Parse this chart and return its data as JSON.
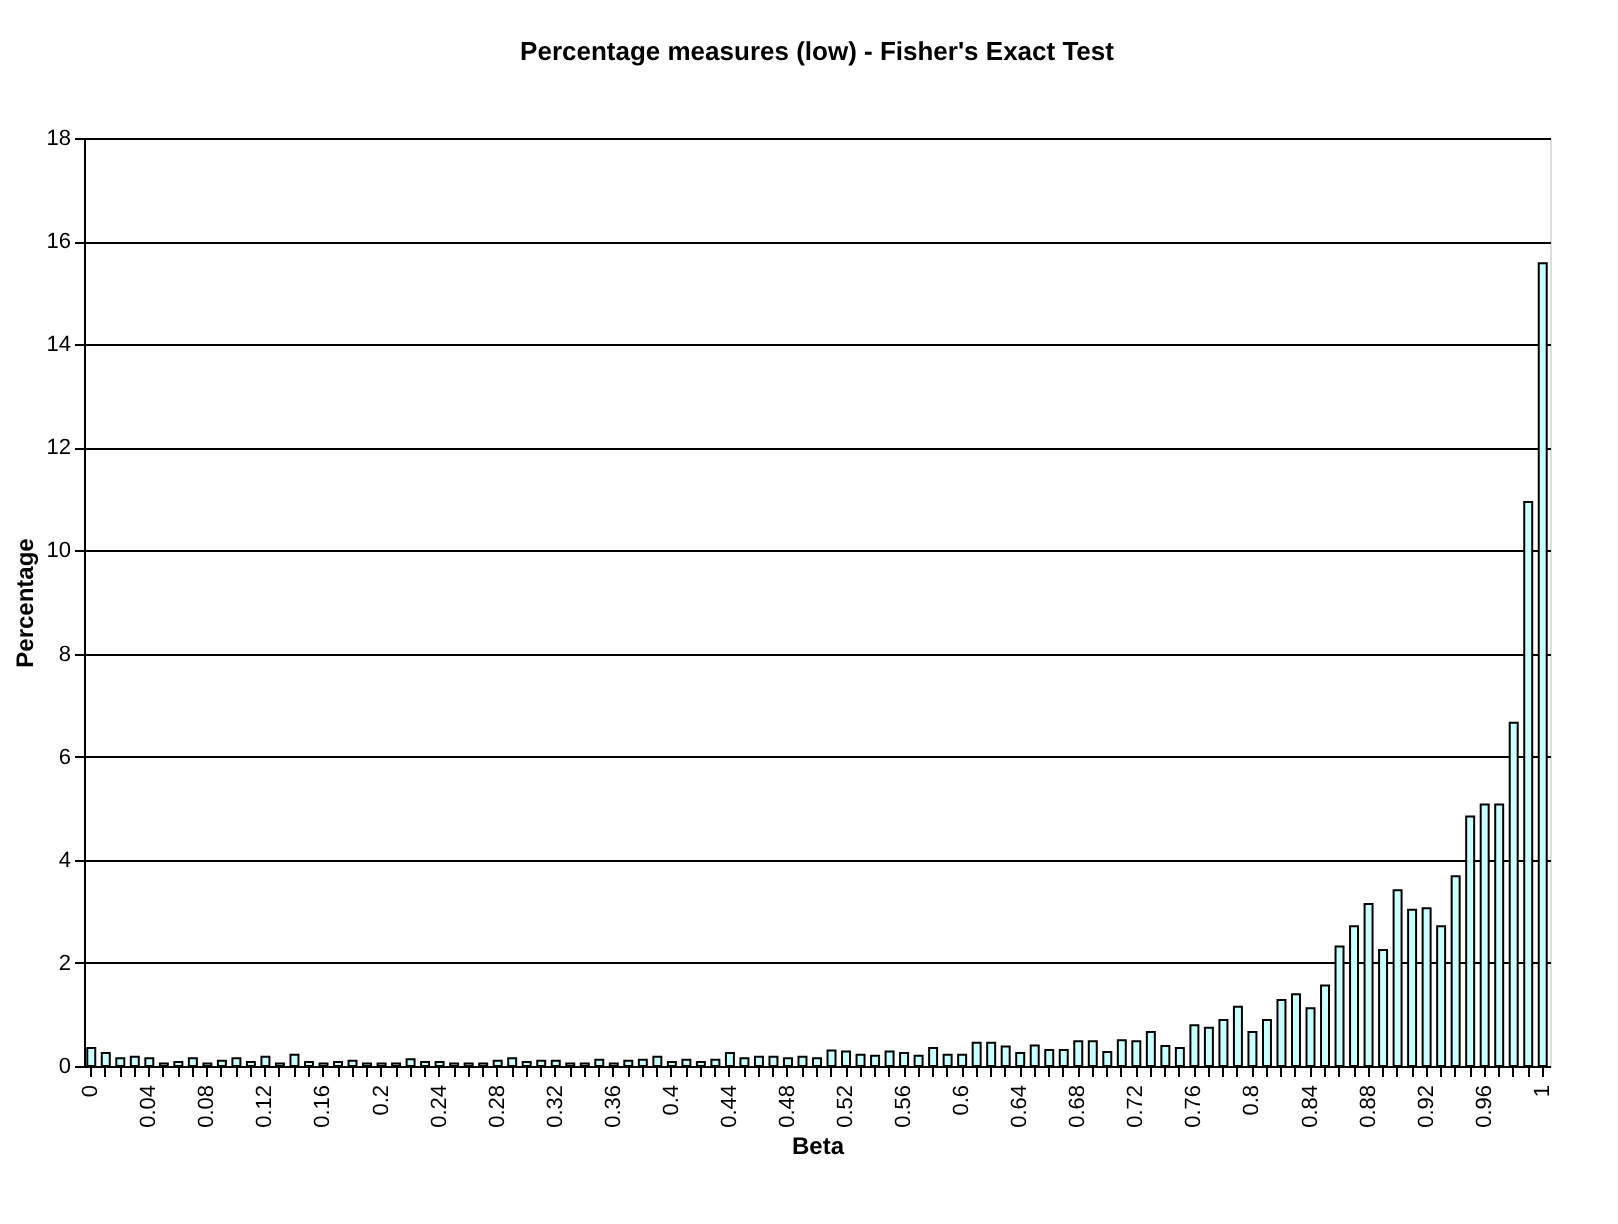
{
  "chart_data": {
    "type": "bar",
    "title": "Percentage measures (low) - Fisher's Exact Test",
    "xlabel": "Beta",
    "ylabel": "Percentage",
    "categories": [
      "0",
      null,
      null,
      null,
      "0.04",
      null,
      null,
      null,
      "0.08",
      null,
      null,
      null,
      "0.12",
      null,
      null,
      null,
      "0.16",
      null,
      null,
      null,
      "0.2",
      null,
      null,
      null,
      "0.24",
      null,
      null,
      null,
      "0.28",
      null,
      null,
      null,
      "0.32",
      null,
      null,
      null,
      "0.36",
      null,
      null,
      null,
      "0.4",
      null,
      null,
      null,
      "0.44",
      null,
      null,
      null,
      "0.48",
      null,
      null,
      null,
      "0.52",
      null,
      null,
      null,
      "0.56",
      null,
      null,
      null,
      "0.6",
      null,
      null,
      null,
      "0.64",
      null,
      null,
      null,
      "0.68",
      null,
      null,
      null,
      "0.72",
      null,
      null,
      null,
      "0.76",
      null,
      null,
      null,
      "0.8",
      null,
      null,
      null,
      "0.84",
      null,
      null,
      null,
      "0.88",
      null,
      null,
      null,
      "0.92",
      null,
      null,
      null,
      "0.96",
      null,
      null,
      null,
      "1"
    ],
    "values": [
      0.35,
      0.25,
      0.15,
      0.18,
      0.15,
      0.05,
      0.08,
      0.15,
      0.05,
      0.1,
      0.15,
      0.08,
      0.18,
      0.05,
      0.22,
      0.08,
      0.05,
      0.08,
      0.1,
      0.05,
      0.05,
      0.05,
      0.13,
      0.08,
      0.08,
      0.05,
      0.05,
      0.05,
      0.1,
      0.15,
      0.08,
      0.1,
      0.1,
      0.05,
      0.05,
      0.12,
      0.05,
      0.1,
      0.12,
      0.18,
      0.08,
      0.12,
      0.08,
      0.12,
      0.25,
      0.15,
      0.18,
      0.18,
      0.15,
      0.18,
      0.15,
      0.3,
      0.28,
      0.22,
      0.2,
      0.28,
      0.25,
      0.2,
      0.35,
      0.22,
      0.22,
      0.45,
      0.45,
      0.38,
      0.25,
      0.4,
      0.31,
      0.31,
      0.48,
      0.48,
      0.27,
      0.5,
      0.48,
      0.66,
      0.39,
      0.35,
      0.79,
      0.74,
      0.89,
      1.15,
      0.66,
      0.89,
      1.28,
      1.39,
      1.12,
      1.56,
      2.32,
      2.71,
      3.14,
      2.25,
      3.41,
      3.03,
      3.06,
      2.71,
      3.68,
      4.84,
      5.07,
      5.07,
      6.66,
      10.94,
      15.57
    ],
    "color": "#ccffff",
    "ylim": [
      0,
      18
    ],
    "yticks": [
      0,
      2,
      4,
      6,
      8,
      10,
      12,
      14,
      16,
      18
    ],
    "grid": "y"
  }
}
